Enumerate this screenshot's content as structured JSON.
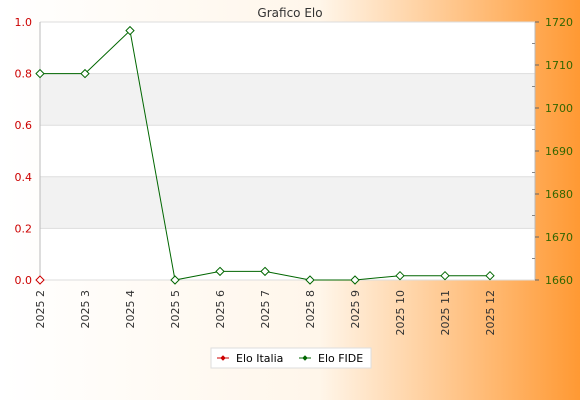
{
  "chart_data": {
    "type": "line",
    "title": "Grafico Elo",
    "categories": [
      "2025 2",
      "2025 3",
      "2025 4",
      "2025 5",
      "2025 6",
      "2025 7",
      "2025 8",
      "2025 9",
      "2025 10",
      "2025 11",
      "2025 12"
    ],
    "left_axis": {
      "range": [
        0.0,
        1.0
      ],
      "ticks": [
        "0.0",
        "0.2",
        "0.4",
        "0.6",
        "0.8",
        "1.0"
      ],
      "color": "#cc0000"
    },
    "right_axis": {
      "range": [
        1660,
        1720
      ],
      "ticks": [
        "1660",
        "1670",
        "1680",
        "1690",
        "1700",
        "1710",
        "1720"
      ],
      "color": "#336600"
    },
    "series": [
      {
        "name": "Elo Italia",
        "axis": "left",
        "color": "#cc0000",
        "marker": "diamond",
        "values": [
          0.0,
          null,
          null,
          null,
          null,
          null,
          null,
          null,
          null,
          null,
          null
        ]
      },
      {
        "name": "Elo FIDE",
        "axis": "right",
        "color": "#006600",
        "marker": "diamond",
        "values": [
          1708,
          1708,
          1718,
          1660,
          1662,
          1662,
          1660,
          1660,
          1661,
          1661,
          1661
        ]
      }
    ],
    "legend": "bottom-center",
    "grid": "horizontal-bands",
    "background": {
      "from": "#ffffff",
      "to": "#ff9933"
    }
  }
}
